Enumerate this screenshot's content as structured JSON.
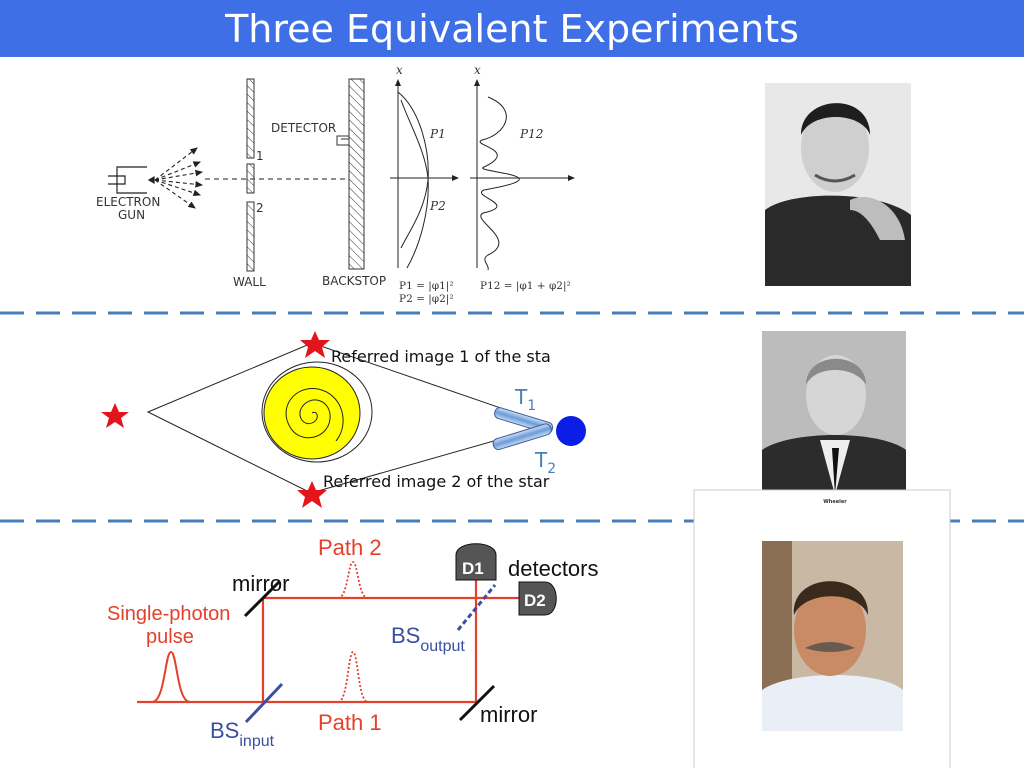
{
  "title": "Three Equivalent Experiments",
  "double_slit": {
    "electron_gun": [
      "ELECTRON",
      "GUN"
    ],
    "slit_1": "1",
    "slit_2": "2",
    "wall": "WALL",
    "detector": "DETECTOR",
    "backstop": "BACKSTOP",
    "axis_x1": "x",
    "axis_x2": "x",
    "p1": "P1",
    "p2": "P2",
    "p12": "P12",
    "formula_p1": "P1 = |φ1|²",
    "formula_p2": "P2 = |φ2|²",
    "formula_p12": "P12 = |φ1 + φ2|²"
  },
  "lensing": {
    "image_1": "Referred image 1 of the sta",
    "image_2": "Referred image 2 of the star",
    "t1": "T",
    "t1_sub": "1",
    "t2": "T",
    "t2_sub": "2"
  },
  "interferometer": {
    "path_2": "Path 2",
    "path_1": "Path 1",
    "mirror_top": "mirror",
    "mirror_bottom": "mirror",
    "pulse": [
      "Single-photon",
      "pulse"
    ],
    "detectors": "detectors",
    "d1": "D1",
    "d2": "D2",
    "bs_output": "BS",
    "bs_output_sub": "output",
    "bs_input": "BS",
    "bs_input_sub": "input"
  },
  "photos": {
    "wheeler_caption": "Wheeler"
  },
  "colors": {
    "title_bar": "#3f6fe6",
    "divider": "#4a7ebb",
    "path_red": "#e2412b",
    "bs_blue": "#3a4fa0",
    "lens_yellow": "#ffff00",
    "star_red": "#e3141b",
    "observer_blue": "#0a1ee6",
    "telescope_label": "#4a7ebb"
  }
}
